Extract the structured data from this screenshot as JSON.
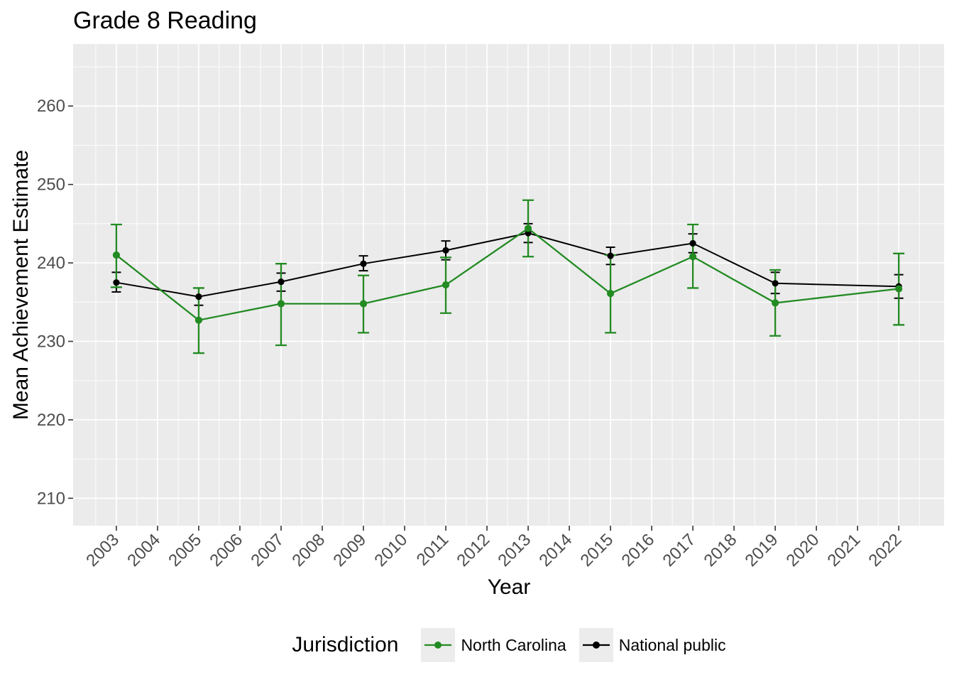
{
  "chart_data": {
    "type": "line",
    "title": "Grade 8 Reading",
    "xlabel": "Year",
    "ylabel": "Mean Achievement Estimate",
    "legend": {
      "title": "Jurisdiction",
      "position": "bottom"
    },
    "grid": true,
    "panel_bg": "#EBEBEB",
    "grid_color": "#FFFFFF",
    "tick_label_color": "#4D4D4D",
    "tick_mark_color": "#333333",
    "legend_key_bg": "#ECECEC",
    "x_ticks": [
      2003,
      2004,
      2005,
      2006,
      2007,
      2008,
      2009,
      2010,
      2011,
      2012,
      2013,
      2014,
      2015,
      2016,
      2017,
      2018,
      2019,
      2020,
      2021,
      2022
    ],
    "y_ticks": [
      210,
      220,
      230,
      240,
      250,
      260
    ],
    "x_domain": [
      2001.95,
      2023.1
    ],
    "y_domain": [
      206.5,
      267.9
    ],
    "series": [
      {
        "name": "North Carolina",
        "color": "#228B22",
        "x": [
          2003,
          2005,
          2007,
          2009,
          2011,
          2013,
          2015,
          2017,
          2019,
          2022
        ],
        "y": [
          241.0,
          232.7,
          234.8,
          234.8,
          237.2,
          244.4,
          236.1,
          240.8,
          234.9,
          236.7
        ],
        "ci_low": [
          236.9,
          228.5,
          229.5,
          231.1,
          233.6,
          240.8,
          231.1,
          236.8,
          230.7,
          232.1
        ],
        "ci_high": [
          244.9,
          236.8,
          239.9,
          238.4,
          240.7,
          248.0,
          241.0,
          244.9,
          239.1,
          241.2
        ]
      },
      {
        "name": "National public",
        "color": "#000000",
        "x": [
          2003,
          2005,
          2007,
          2009,
          2011,
          2013,
          2015,
          2017,
          2019,
          2022
        ],
        "y": [
          237.5,
          235.7,
          237.6,
          239.9,
          241.6,
          243.8,
          240.9,
          242.5,
          237.4,
          237.0
        ],
        "ci_low": [
          236.3,
          234.6,
          236.4,
          239.0,
          240.4,
          242.6,
          239.8,
          241.3,
          236.1,
          235.5
        ],
        "ci_high": [
          238.8,
          236.8,
          238.7,
          240.9,
          242.8,
          245.0,
          242.0,
          243.7,
          238.8,
          238.5
        ]
      }
    ]
  }
}
